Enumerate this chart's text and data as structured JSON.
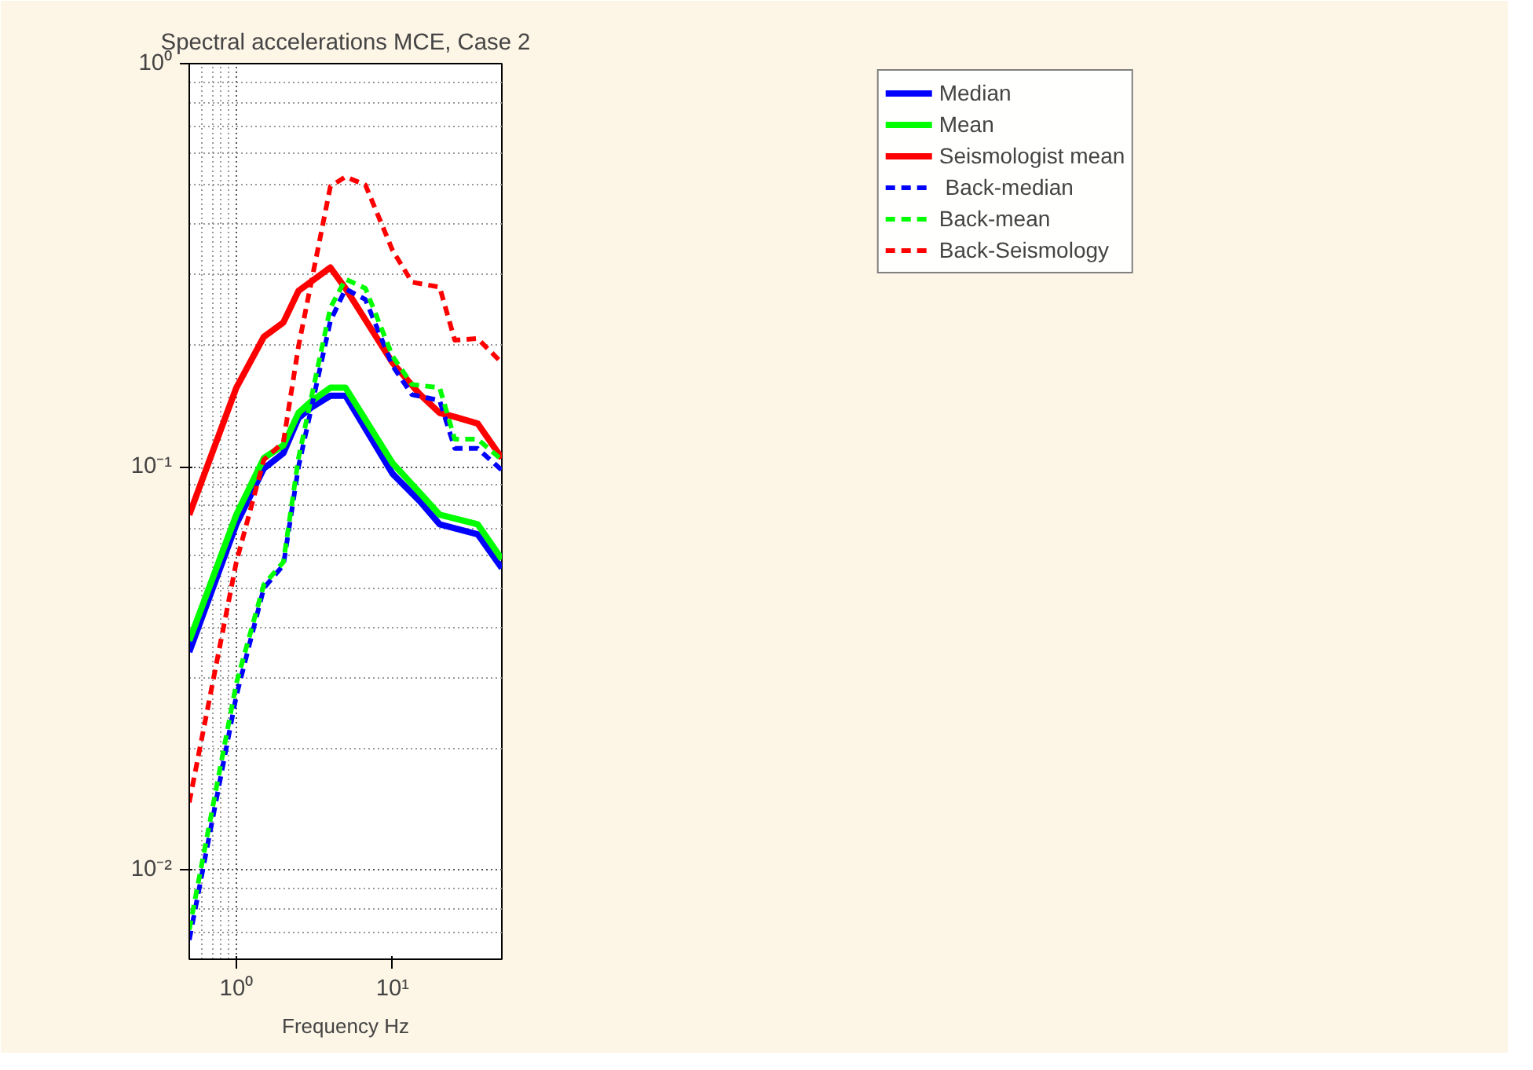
{
  "chart_data": {
    "type": "line",
    "title": "Spectral accelerations MCE, Case 2",
    "xlabel": "Frequency Hz",
    "log": "xy",
    "grid": true,
    "legend": "top right",
    "marker": "none",
    "xlim": [
      0.5,
      50
    ],
    "xticks": [
      {
        "value": 1,
        "label": "10⁰"
      },
      {
        "value": 10,
        "label": "10¹"
      }
    ],
    "ylim": [
      0.006,
      1
    ],
    "yticks": [
      {
        "value": 0.01,
        "label": "10⁻²"
      },
      {
        "value": 0.1,
        "label": "10⁻¹"
      },
      {
        "value": 1,
        "label": "10⁰"
      }
    ],
    "series": [
      {
        "name": "Median",
        "color": "#0000ff",
        "line_style": "solid",
        "x": [
          0.5,
          1,
          1.5,
          2,
          2.5,
          3,
          4,
          5,
          10,
          15,
          20,
          35,
          50
        ],
        "values": [
          0.0347,
          0.072,
          0.099,
          0.108,
          0.132,
          0.14,
          0.15,
          0.15,
          0.096,
          0.082,
          0.072,
          0.068,
          0.056
        ]
      },
      {
        "name": "Mean",
        "color": "#00ff00",
        "line_style": "solid",
        "x": [
          0.5,
          1,
          1.5,
          2,
          2.5,
          3,
          4,
          5,
          10,
          15,
          20,
          35,
          50
        ],
        "values": [
          0.037,
          0.076,
          0.105,
          0.113,
          0.136,
          0.145,
          0.157,
          0.157,
          0.102,
          0.086,
          0.076,
          0.072,
          0.059
        ]
      },
      {
        "name": "Seismologist mean",
        "color": "#ff0000",
        "line_style": "solid",
        "x": [
          0.5,
          1,
          1.5,
          2,
          2.5,
          4,
          5,
          10,
          15,
          20,
          25,
          35,
          50
        ],
        "values": [
          0.076,
          0.157,
          0.21,
          0.228,
          0.273,
          0.312,
          0.277,
          0.181,
          0.151,
          0.136,
          0.133,
          0.128,
          0.105
        ]
      },
      {
        "name": " Back-median",
        "color": "#0000ff",
        "line_style": "dashed",
        "x": [
          0.5,
          1,
          1.5,
          2,
          2.5,
          4,
          5,
          6.7,
          10,
          13.3,
          20,
          25,
          35,
          50
        ],
        "values": [
          0.0067,
          0.027,
          0.05,
          0.057,
          0.1,
          0.23,
          0.276,
          0.26,
          0.178,
          0.151,
          0.146,
          0.111,
          0.111,
          0.098
        ]
      },
      {
        "name": "Back-mean",
        "color": "#00ff00",
        "line_style": "dashed",
        "x": [
          0.5,
          1,
          1.5,
          2,
          2.5,
          4,
          5,
          6.7,
          10,
          13.3,
          20,
          25,
          35,
          50
        ],
        "values": [
          0.0071,
          0.029,
          0.051,
          0.058,
          0.105,
          0.248,
          0.292,
          0.277,
          0.188,
          0.16,
          0.157,
          0.117,
          0.117,
          0.104
        ]
      },
      {
        "name": "Back-Seismology",
        "color": "#ff0000",
        "line_style": "dashed",
        "x": [
          0.5,
          1,
          1.5,
          2,
          2.5,
          4,
          5,
          6.7,
          10,
          13.3,
          20,
          25,
          35,
          50
        ],
        "values": [
          0.0147,
          0.058,
          0.104,
          0.115,
          0.199,
          0.496,
          0.524,
          0.5,
          0.344,
          0.287,
          0.279,
          0.206,
          0.208,
          0.181
        ]
      }
    ]
  }
}
